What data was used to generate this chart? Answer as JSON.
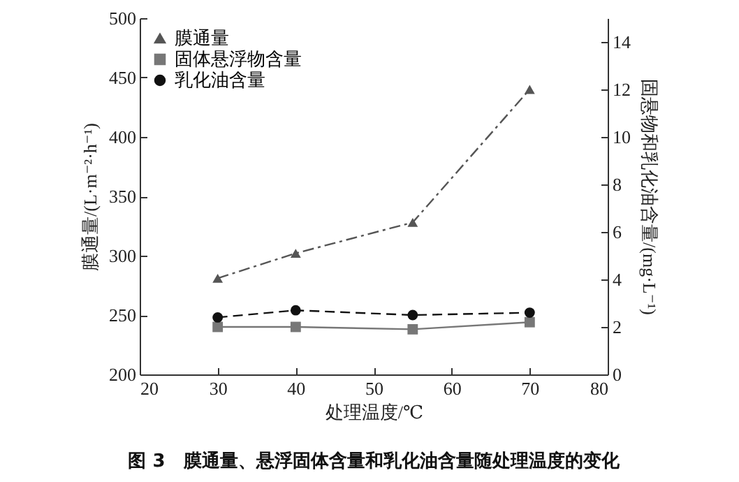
{
  "chart_data": {
    "type": "line",
    "title": "图 3　膜通量、悬浮固体含量和乳化油含量随处理温度的变化",
    "xlabel": "处理温度/℃",
    "ylabel": "膜通量/(L·m⁻²·h⁻¹)",
    "y2label": "固悬物和乳化油含量/(mg·L⁻¹)",
    "x": [
      30,
      40,
      55,
      70
    ],
    "series": [
      {
        "name": "膜通量",
        "color": "#555555",
        "values": [
          281,
          302,
          328,
          440
        ],
        "marker": "triangle",
        "line_style": "dotted"
      },
      {
        "name": "固体悬浮物含量",
        "color": "#777777",
        "values": [
          2.0,
          2.0,
          1.9,
          2.2
        ],
        "marker": "square",
        "line_style": "solid",
        "axis": "y2"
      },
      {
        "name": "乳化油含量",
        "color": "#111111",
        "values": [
          2.4,
          2.7,
          2.5,
          2.6
        ],
        "marker": "circle",
        "line_style": "dashed",
        "axis": "y2"
      }
    ],
    "xlim": [
      20,
      80
    ],
    "xticks": [
      20,
      30,
      40,
      50,
      60,
      70,
      80
    ],
    "ylim": [
      200,
      500
    ],
    "yticks": [
      200,
      250,
      300,
      350,
      400,
      450,
      500
    ],
    "y2lim": [
      0,
      15
    ],
    "y2ticks": [
      0,
      2,
      4,
      6,
      8,
      10,
      12,
      14
    ],
    "legend": "top left",
    "grid": false
  }
}
